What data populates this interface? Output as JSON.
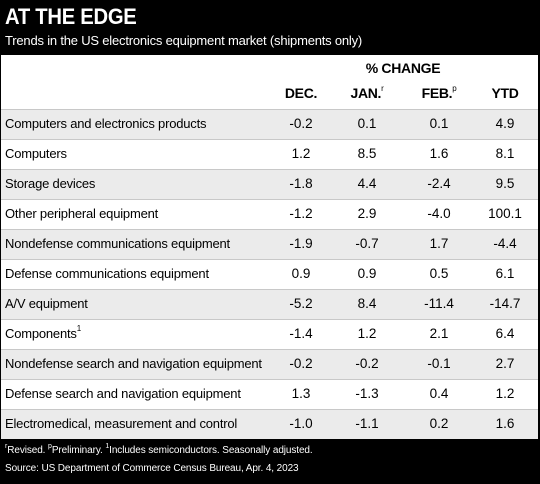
{
  "header": {
    "title": "AT THE EDGE",
    "subtitle": "Trends in the US electronics equipment market (shipments only)"
  },
  "table": {
    "group_header": "% CHANGE",
    "columns": [
      {
        "label": "DEC.",
        "marker": ""
      },
      {
        "label": "JAN.",
        "marker": "r"
      },
      {
        "label": "FEB.",
        "marker": "p"
      },
      {
        "label": "YTD",
        "marker": ""
      }
    ],
    "rows": [
      {
        "label": "Computers and electronics products",
        "marker": "",
        "values": [
          "-0.2",
          "0.1",
          "0.1",
          "4.9"
        ]
      },
      {
        "label": "Computers",
        "marker": "",
        "values": [
          "1.2",
          "8.5",
          "1.6",
          "8.1"
        ]
      },
      {
        "label": "Storage devices",
        "marker": "",
        "values": [
          "-1.8",
          "4.4",
          "-2.4",
          "9.5"
        ]
      },
      {
        "label": "Other peripheral equipment",
        "marker": "",
        "values": [
          "-1.2",
          "2.9",
          "-4.0",
          "100.1"
        ]
      },
      {
        "label": "Nondefense communications equipment",
        "marker": "",
        "values": [
          "-1.9",
          "-0.7",
          "1.7",
          "-4.4"
        ]
      },
      {
        "label": "Defense communications equipment",
        "marker": "",
        "values": [
          "0.9",
          "0.9",
          "0.5",
          "6.1"
        ]
      },
      {
        "label": "A/V equipment",
        "marker": "",
        "values": [
          "-5.2",
          "8.4",
          "-11.4",
          "-14.7"
        ]
      },
      {
        "label": "Components",
        "marker": "1",
        "values": [
          "-1.4",
          "1.2",
          "2.1",
          "6.4"
        ]
      },
      {
        "label": "Nondefense search and navigation equipment",
        "marker": "",
        "values": [
          "-0.2",
          "-0.2",
          "-0.1",
          "2.7"
        ]
      },
      {
        "label": "Defense search and navigation equipment",
        "marker": "",
        "values": [
          "1.3",
          "-1.3",
          "0.4",
          "1.2"
        ]
      },
      {
        "label": "Electromedical, measurement and control",
        "marker": "",
        "values": [
          "-1.0",
          "-1.1",
          "0.2",
          "1.6"
        ]
      }
    ]
  },
  "footer": {
    "notes": [
      {
        "marker": "r",
        "text": "Revised. "
      },
      {
        "marker": "p",
        "text": "Preliminary. "
      },
      {
        "marker": "1",
        "text": "Includes semiconductors. Seasonally adjusted."
      }
    ],
    "source": "Source: US Department of Commerce Census Bureau, Apr. 4, 2023"
  },
  "colors": {
    "background": "#000000",
    "panel": "#ffffff",
    "row_shade": "#ebebeb",
    "row_rule": "#c8c8c8"
  }
}
